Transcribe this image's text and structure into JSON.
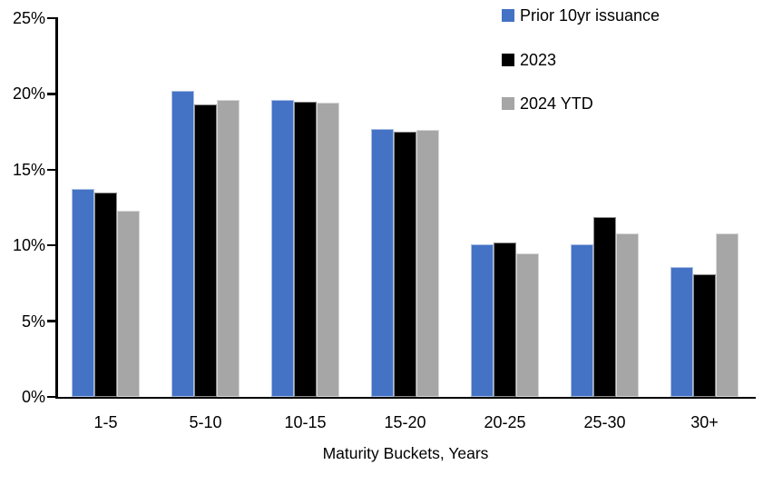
{
  "chart_data": {
    "type": "bar",
    "title": "",
    "xlabel": "Maturity Buckets, Years",
    "ylabel": "",
    "ylim": [
      0,
      25
    ],
    "yticks": [
      0,
      5,
      10,
      15,
      20,
      25
    ],
    "ytick_labels": [
      "0%",
      "5%",
      "10%",
      "15%",
      "20%",
      "25%"
    ],
    "categories": [
      "1-5",
      "5-10",
      "10-15",
      "15-20",
      "20-25",
      "25-30",
      "30+"
    ],
    "series": [
      {
        "name": "Prior 10yr issuance",
        "color": "#4472C4",
        "values": [
          13.7,
          20.2,
          19.6,
          17.7,
          10.1,
          10.1,
          8.6
        ]
      },
      {
        "name": "2023",
        "color": "#000000",
        "values": [
          13.5,
          19.3,
          19.5,
          17.5,
          10.2,
          11.9,
          8.1
        ]
      },
      {
        "name": "2024 YTD",
        "color": "#A6A6A6",
        "values": [
          12.3,
          19.6,
          19.4,
          17.6,
          9.5,
          10.8,
          10.8
        ]
      }
    ],
    "legend_position": "top-right",
    "grid": false,
    "background_color": "#FFFFFF",
    "axis_color": "#000000"
  }
}
